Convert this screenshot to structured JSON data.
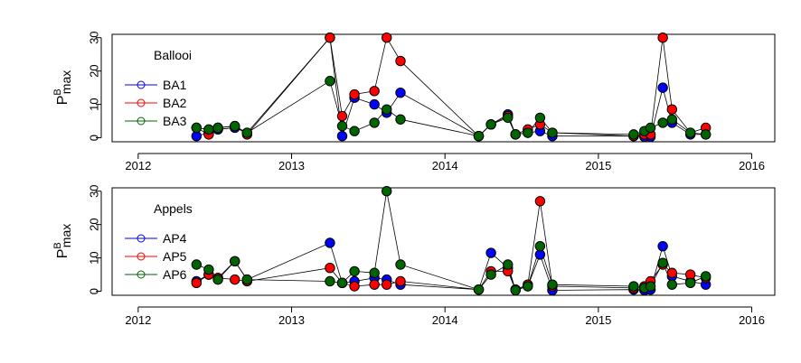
{
  "chart_data": [
    {
      "type": "scatter",
      "title": "Ballooi",
      "ylabel_base": "P",
      "ylabel_sup": "B",
      "ylabel_sub": "max",
      "xlim": [
        2011.83,
        2016.15
      ],
      "ylim": [
        -1.2,
        31
      ],
      "x_ticks": [
        2012,
        2013,
        2014,
        2015,
        2016
      ],
      "y_ticks": [
        0,
        10,
        20,
        30
      ],
      "legend_position": "left",
      "series": [
        {
          "name": "BA1",
          "color": "#0000ff",
          "x": [
            2012.38,
            2012.46,
            2012.52,
            2012.63,
            2012.71,
            2013.25,
            2013.33,
            2013.41,
            2013.54,
            2013.62,
            2013.71,
            2014.22,
            2014.3,
            2014.41,
            2014.46,
            2014.54,
            2014.62,
            2014.7,
            2015.23,
            2015.3,
            2015.34,
            2015.42,
            2015.48,
            2015.6,
            2015.7
          ],
          "y": [
            0.5,
            1.5,
            2.5,
            3,
            1.5,
            30,
            0.5,
            12,
            10,
            7.5,
            13.5,
            0.5,
            4,
            7,
            1,
            1.5,
            2,
            0.5,
            0.5,
            0.3,
            0.3,
            15,
            4.5,
            1,
            1
          ]
        },
        {
          "name": "BA2",
          "color": "#ff0000",
          "x": [
            2012.38,
            2012.46,
            2012.52,
            2012.63,
            2012.71,
            2013.25,
            2013.33,
            2013.41,
            2013.54,
            2013.62,
            2013.71,
            2014.22,
            2014.3,
            2014.41,
            2014.46,
            2014.54,
            2014.62,
            2014.7,
            2015.23,
            2015.3,
            2015.34,
            2015.42,
            2015.48,
            2015.6,
            2015.7
          ],
          "y": [
            3,
            1,
            3,
            3.5,
            1,
            30,
            6.5,
            13,
            14,
            30,
            23,
            0.5,
            4,
            6.5,
            1,
            2.5,
            4,
            1.5,
            0.5,
            1,
            1,
            30,
            8.5,
            1.5,
            3
          ]
        },
        {
          "name": "BA3",
          "color": "#006400",
          "x": [
            2012.38,
            2012.46,
            2012.52,
            2012.63,
            2012.71,
            2013.25,
            2013.33,
            2013.41,
            2013.54,
            2013.62,
            2013.71,
            2014.22,
            2014.3,
            2014.41,
            2014.46,
            2014.54,
            2014.62,
            2014.7,
            2015.23,
            2015.3,
            2015.34,
            2015.42,
            2015.48,
            2015.6,
            2015.7
          ],
          "y": [
            3,
            2.5,
            3,
            3.5,
            1.5,
            17,
            3.5,
            2,
            4.5,
            8.5,
            5.5,
            0.5,
            4,
            6,
            1,
            1.5,
            6,
            1.5,
            1,
            2,
            3,
            4.5,
            5.5,
            1.5,
            1
          ]
        }
      ]
    },
    {
      "type": "scatter",
      "title": "Appels",
      "ylabel_base": "P",
      "ylabel_sup": "B",
      "ylabel_sub": "max",
      "xlim": [
        2011.83,
        2016.15
      ],
      "ylim": [
        -1.2,
        31
      ],
      "x_ticks": [
        2012,
        2013,
        2014,
        2015,
        2016
      ],
      "y_ticks": [
        0,
        10,
        20,
        30
      ],
      "legend_position": "left",
      "series": [
        {
          "name": "AP4",
          "color": "#0000ff",
          "x": [
            2012.38,
            2012.46,
            2012.52,
            2012.63,
            2012.71,
            2013.25,
            2013.33,
            2013.41,
            2013.54,
            2013.62,
            2013.71,
            2014.22,
            2014.3,
            2014.41,
            2014.46,
            2014.54,
            2014.62,
            2014.7,
            2015.23,
            2015.3,
            2015.34,
            2015.42,
            2015.48,
            2015.6,
            2015.7
          ],
          "y": [
            3,
            5,
            4,
            9,
            3.5,
            14.5,
            2.5,
            3,
            4,
            3.5,
            2,
            0.5,
            11.5,
            7,
            0.5,
            1.5,
            11,
            0.3,
            0.5,
            0.3,
            0.5,
            13.5,
            4.5,
            3,
            2
          ]
        },
        {
          "name": "AP5",
          "color": "#ff0000",
          "x": [
            2012.38,
            2012.46,
            2012.52,
            2012.63,
            2012.71,
            2013.25,
            2013.33,
            2013.41,
            2013.54,
            2013.62,
            2013.71,
            2014.22,
            2014.3,
            2014.41,
            2014.46,
            2014.54,
            2014.62,
            2014.7,
            2015.23,
            2015.3,
            2015.34,
            2015.42,
            2015.48,
            2015.6,
            2015.7
          ],
          "y": [
            2.5,
            5,
            4,
            3.5,
            3,
            7,
            2.5,
            1.5,
            2,
            2,
            3,
            0.5,
            6,
            6,
            0.5,
            2,
            27,
            1.5,
            1,
            1.5,
            3,
            8,
            5.5,
            5,
            4
          ]
        },
        {
          "name": "AP6",
          "color": "#006400",
          "x": [
            2012.38,
            2012.46,
            2012.52,
            2012.63,
            2012.71,
            2013.25,
            2013.33,
            2013.41,
            2013.54,
            2013.62,
            2013.71,
            2014.22,
            2014.3,
            2014.41,
            2014.46,
            2014.54,
            2014.62,
            2014.7,
            2015.23,
            2015.3,
            2015.34,
            2015.42,
            2015.48,
            2015.6,
            2015.7
          ],
          "y": [
            8,
            6.5,
            3.5,
            9,
            3.5,
            3,
            2.5,
            6,
            5.5,
            30,
            8,
            0.5,
            5,
            8,
            0.3,
            1.5,
            13.5,
            2,
            1.5,
            1,
            1.5,
            8.5,
            2,
            2.5,
            4.5
          ]
        }
      ]
    }
  ]
}
